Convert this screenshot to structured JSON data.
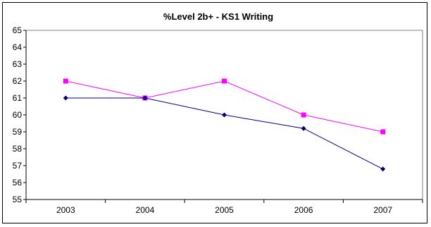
{
  "chart_data": {
    "type": "line",
    "title": "%Level 2b+ - KS1 Writing",
    "xlabel": "",
    "ylabel": "",
    "categories": [
      "2003",
      "2004",
      "2005",
      "2006",
      "2007"
    ],
    "ylim": [
      55,
      65
    ],
    "ytick_step": 1,
    "grid": false,
    "legend": "none",
    "series": [
      {
        "values": [
          62,
          61,
          62,
          60,
          59
        ],
        "color": "#ff00ff",
        "marker": "square"
      },
      {
        "values": [
          61,
          61,
          60,
          59.2,
          56.8
        ],
        "color": "#000080",
        "marker": "diamond"
      }
    ]
  }
}
